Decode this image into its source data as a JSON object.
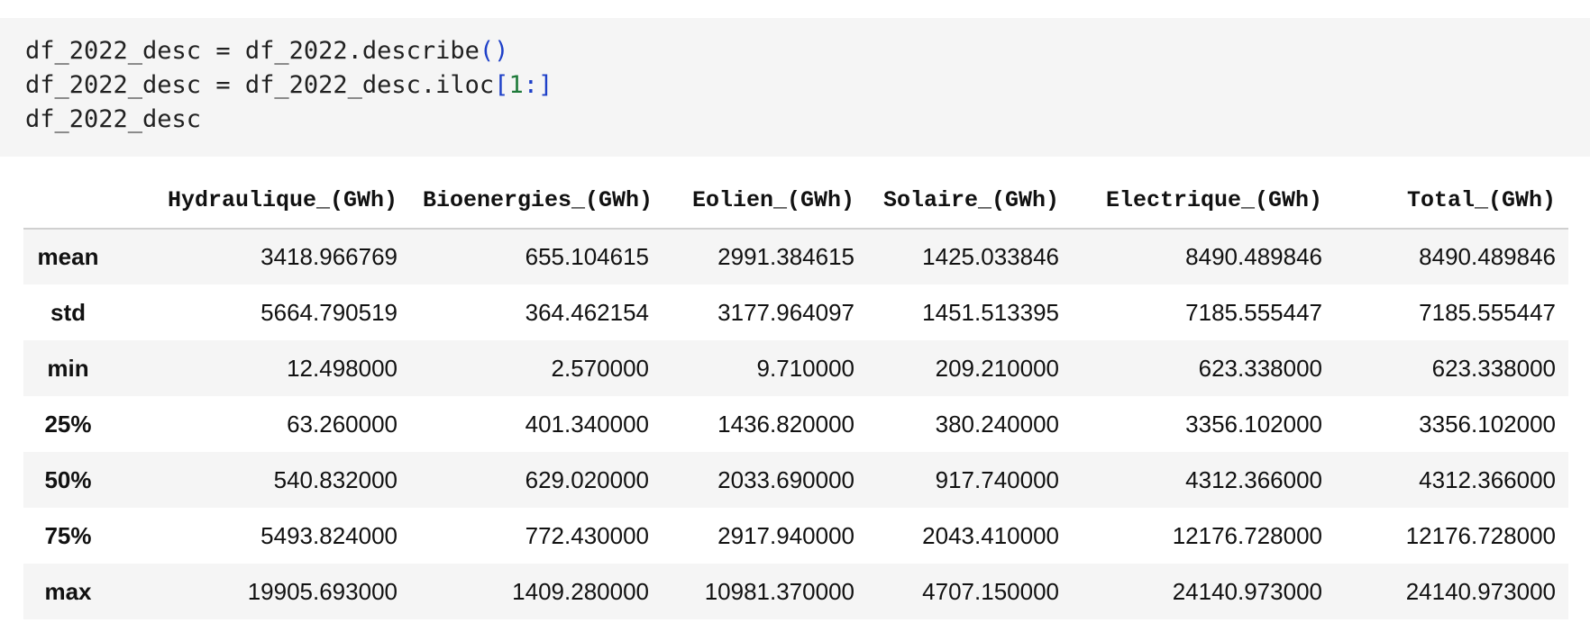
{
  "code_cell": {
    "line1": {
      "a": "df_2022_desc = df_2022.describe",
      "b": "()"
    },
    "line2": {
      "a": "df_2022_desc = df_2022_desc.iloc",
      "b": "[",
      "c": "1",
      "d": ":]"
    },
    "line3": {
      "a": "df_2022_desc"
    }
  },
  "table": {
    "columns": [
      "Hydraulique_(GWh)",
      "Bioenergies_(GWh)",
      "Eolien_(GWh)",
      "Solaire_(GWh)",
      "Electrique_(GWh)",
      "Total_(GWh)"
    ],
    "rows": [
      {
        "label": "mean",
        "values": [
          "3418.966769",
          "655.104615",
          "2991.384615",
          "1425.033846",
          "8490.489846",
          "8490.489846"
        ]
      },
      {
        "label": "std",
        "values": [
          "5664.790519",
          "364.462154",
          "3177.964097",
          "1451.513395",
          "7185.555447",
          "7185.555447"
        ]
      },
      {
        "label": "min",
        "values": [
          "12.498000",
          "2.570000",
          "9.710000",
          "209.210000",
          "623.338000",
          "623.338000"
        ]
      },
      {
        "label": "25%",
        "values": [
          "63.260000",
          "401.340000",
          "1436.820000",
          "380.240000",
          "3356.102000",
          "3356.102000"
        ]
      },
      {
        "label": "50%",
        "values": [
          "540.832000",
          "629.020000",
          "2033.690000",
          "917.740000",
          "4312.366000",
          "4312.366000"
        ]
      },
      {
        "label": "75%",
        "values": [
          "5493.824000",
          "772.430000",
          "2917.940000",
          "2043.410000",
          "12176.728000",
          "12176.728000"
        ]
      },
      {
        "label": "max",
        "values": [
          "19905.693000",
          "1409.280000",
          "10981.370000",
          "4707.150000",
          "24140.973000",
          "24140.973000"
        ]
      }
    ]
  },
  "colors": {
    "code_background": "#f5f5f5",
    "paren_blue": "#1e40c8",
    "number_green": "#1f7a3a",
    "row_stripe": "#f5f5f5"
  }
}
